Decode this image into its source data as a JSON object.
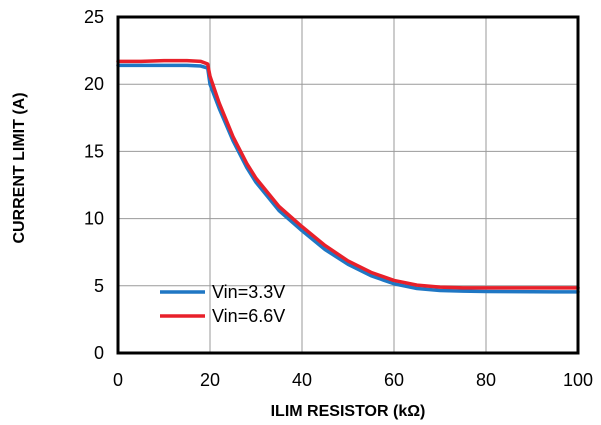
{
  "chart_data": {
    "type": "line",
    "title": "",
    "xlabel": "ILIM RESISTOR  (kΩ)",
    "ylabel": "CURRENT  LIMIT (A)",
    "xlim": [
      0,
      100
    ],
    "ylim": [
      0,
      25
    ],
    "xticks": [
      0,
      20,
      40,
      60,
      80,
      100
    ],
    "yticks": [
      0,
      5,
      10,
      15,
      20,
      25
    ],
    "grid": true,
    "legend_position": "bottom-left",
    "series": [
      {
        "name": "Vin=3.3V",
        "color": "#1f77c4",
        "x": [
          0,
          5,
          10,
          15,
          18,
          19.5,
          20,
          22,
          25,
          28,
          30,
          35,
          40,
          45,
          50,
          55,
          60,
          65,
          70,
          75,
          80,
          85,
          90,
          95,
          100
        ],
        "y": [
          21.4,
          21.4,
          21.4,
          21.4,
          21.35,
          21.2,
          20.0,
          18.2,
          15.8,
          13.8,
          12.7,
          10.6,
          9.1,
          7.7,
          6.6,
          5.75,
          5.15,
          4.8,
          4.65,
          4.6,
          4.58,
          4.57,
          4.56,
          4.55,
          4.55
        ]
      },
      {
        "name": "Vin=6.6V",
        "color": "#e8202a",
        "x": [
          0,
          5,
          10,
          15,
          18,
          19.5,
          20,
          22,
          25,
          28,
          30,
          35,
          40,
          45,
          50,
          55,
          60,
          65,
          70,
          75,
          80,
          85,
          90,
          95,
          100
        ],
        "y": [
          21.7,
          21.7,
          21.75,
          21.75,
          21.7,
          21.5,
          20.6,
          18.6,
          16.1,
          14.1,
          13.0,
          10.9,
          9.4,
          8.0,
          6.85,
          6.0,
          5.4,
          5.05,
          4.9,
          4.85,
          4.85,
          4.85,
          4.85,
          4.85,
          4.85
        ]
      }
    ]
  }
}
